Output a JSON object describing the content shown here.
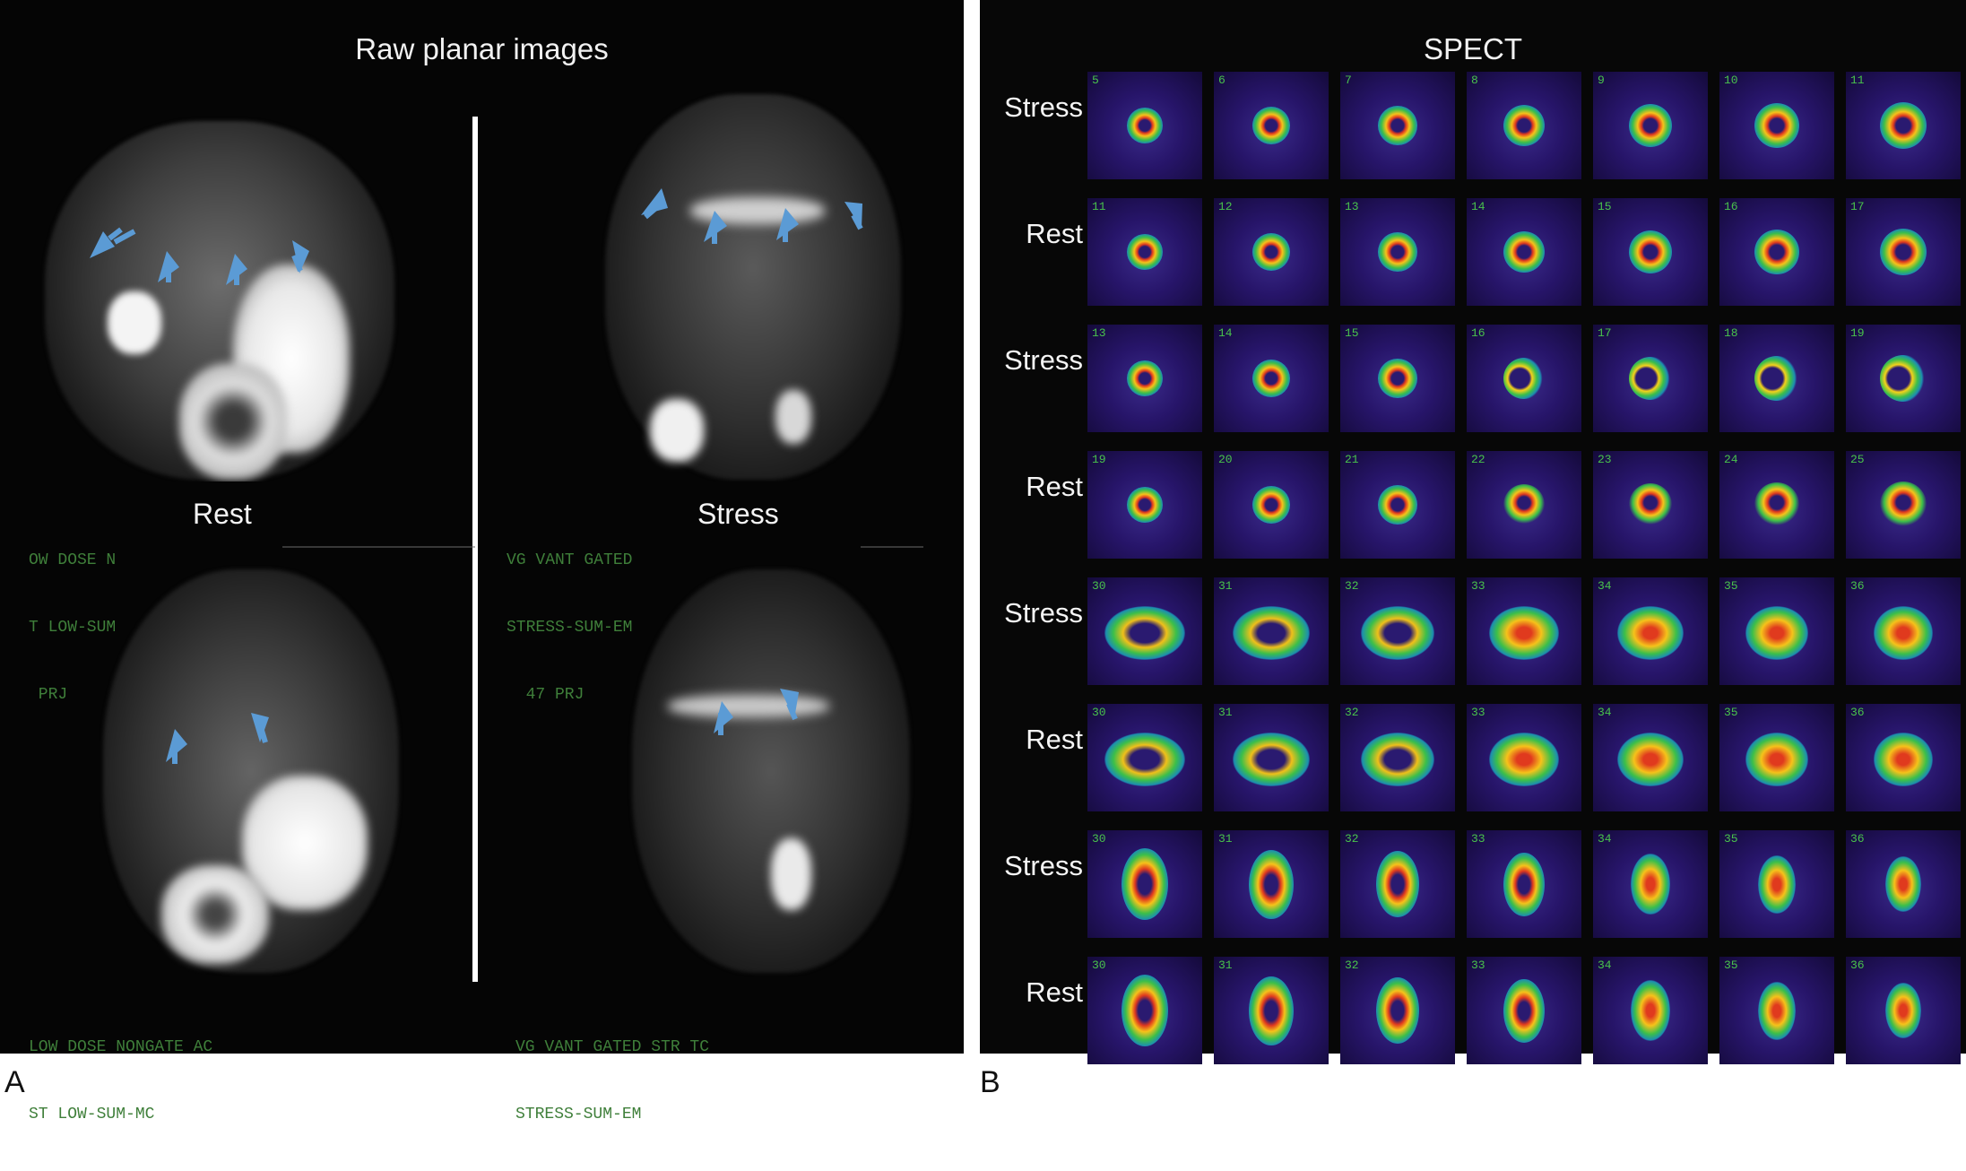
{
  "panel_a": {
    "title": "Raw planar images",
    "rest_label": "Rest",
    "stress_label": "Stress",
    "letter": "A",
    "top_left_text": [
      "OW DOSE N",
      "T LOW-SUM",
      " PRJ"
    ],
    "top_right_text": [
      "VG VANT GATED",
      "STRESS-SUM-EM",
      "  47 PRJ"
    ],
    "bottom_left_text": [
      "LOW DOSE NONGATE AC",
      "ST LOW-SUM-MC"
    ],
    "bottom_right_text": [
      "VG VANT GATED STR TC",
      "STRESS-SUM-EM"
    ]
  },
  "panel_b": {
    "title": "SPECT",
    "letter": "B",
    "rows": [
      {
        "label": "Stress",
        "nums": [
          "5",
          "6",
          "7",
          "8",
          "9",
          "10",
          "11"
        ]
      },
      {
        "label": "Rest",
        "nums": [
          "11",
          "12",
          "13",
          "14",
          "15",
          "16",
          "17"
        ]
      },
      {
        "label": "Stress",
        "nums": [
          "13",
          "14",
          "15",
          "16",
          "17",
          "18",
          "19"
        ]
      },
      {
        "label": "Rest",
        "nums": [
          "19",
          "20",
          "21",
          "22",
          "23",
          "24",
          "25"
        ]
      },
      {
        "label": "Stress",
        "nums": [
          "30",
          "31",
          "32",
          "33",
          "34",
          "35",
          "36"
        ]
      },
      {
        "label": "Rest",
        "nums": [
          "30",
          "31",
          "32",
          "33",
          "34",
          "35",
          "36"
        ]
      },
      {
        "label": "Stress",
        "nums": [
          "30",
          "31",
          "32",
          "33",
          "34",
          "35",
          "36"
        ]
      },
      {
        "label": "Rest",
        "nums": [
          "30",
          "31",
          "32",
          "33",
          "34",
          "35",
          "36"
        ]
      }
    ]
  },
  "colors": {
    "arrow": "#5b9bd5",
    "terminal_text": "#3f7f3a",
    "tile_number": "#49c24c"
  }
}
